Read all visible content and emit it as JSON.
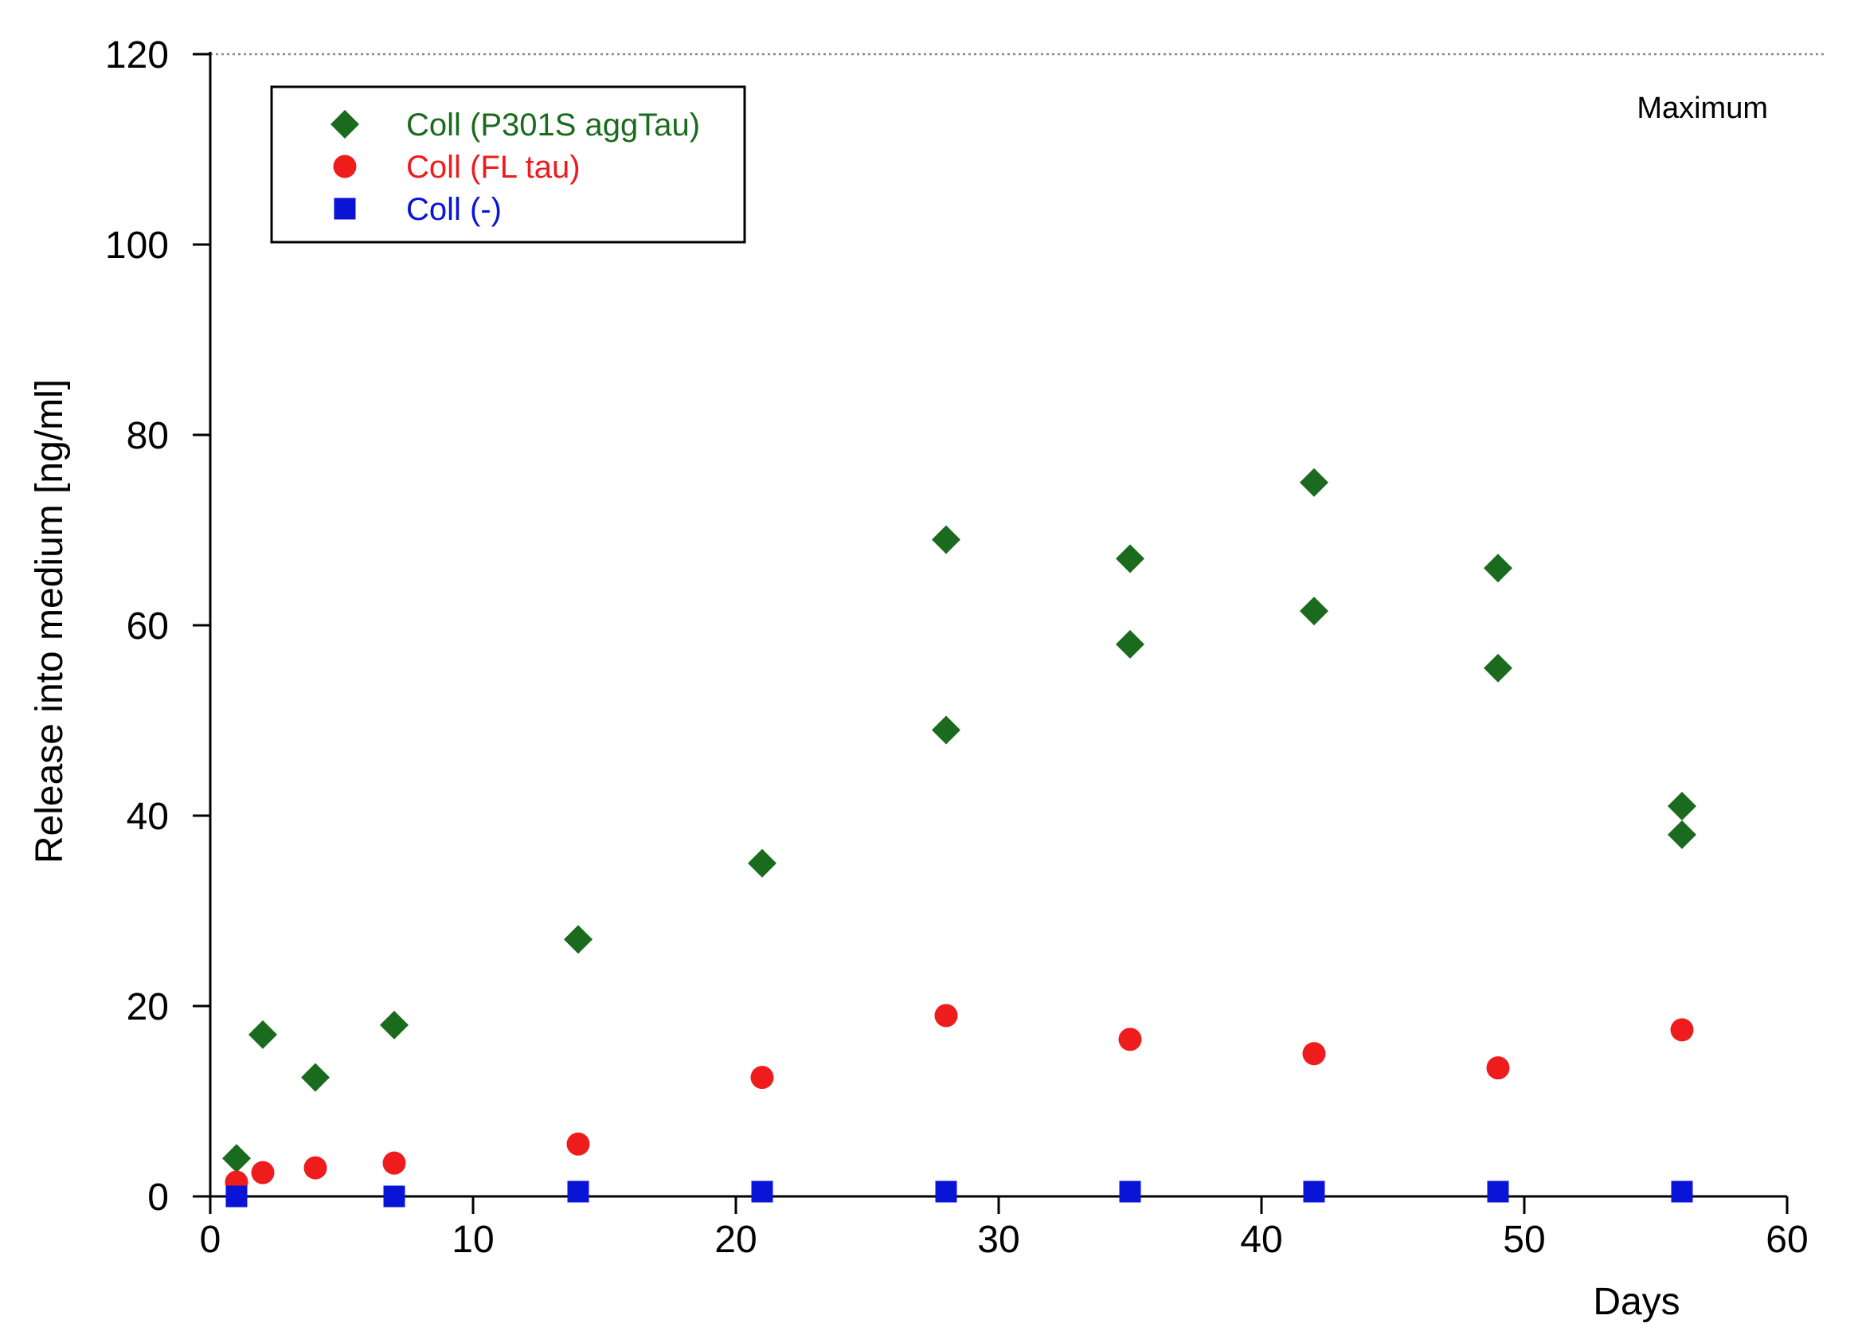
{
  "chart_data": {
    "type": "scatter",
    "title": "",
    "xlabel": "Days",
    "ylabel": "Release into medium [ng/ml]",
    "xlim": [
      0,
      60
    ],
    "ylim": [
      0,
      120
    ],
    "xticks": [
      "0",
      "10",
      "20",
      "30",
      "40",
      "50",
      "60"
    ],
    "yticks": [
      "0",
      "20",
      "40",
      "60",
      "80",
      "100",
      "120"
    ],
    "grid": false,
    "legend_position": "top-left",
    "annotations": [
      {
        "text": "Maximum",
        "y": 120,
        "line_style": "dotted"
      }
    ],
    "series": [
      {
        "name": "Coll (P301S aggTau)",
        "marker": "diamond",
        "color": "#1a6b1e",
        "points": [
          [
            1,
            4
          ],
          [
            2,
            17
          ],
          [
            4,
            12.5
          ],
          [
            7,
            18
          ],
          [
            14,
            27
          ],
          [
            21,
            35
          ],
          [
            28,
            69
          ],
          [
            28,
            49
          ],
          [
            35,
            67
          ],
          [
            35,
            58
          ],
          [
            42,
            75
          ],
          [
            42,
            61.5
          ],
          [
            49,
            66
          ],
          [
            49,
            55.5
          ],
          [
            56,
            41
          ],
          [
            56,
            38
          ]
        ]
      },
      {
        "name": "Coll (FL tau)",
        "marker": "circle",
        "color": "#ee1c1c",
        "points": [
          [
            1,
            1.5
          ],
          [
            2,
            2.5
          ],
          [
            4,
            3
          ],
          [
            7,
            3.5
          ],
          [
            14,
            5.5
          ],
          [
            21,
            12.5
          ],
          [
            28,
            19
          ],
          [
            35,
            16.5
          ],
          [
            42,
            15
          ],
          [
            49,
            13.5
          ],
          [
            56,
            17.5
          ]
        ]
      },
      {
        "name": "Coll (-)",
        "marker": "square",
        "color": "#0a14d6",
        "points": [
          [
            1,
            0
          ],
          [
            7,
            0
          ],
          [
            14,
            0.5
          ],
          [
            21,
            0.5
          ],
          [
            28,
            0.5
          ],
          [
            35,
            0.5
          ],
          [
            42,
            0.5
          ],
          [
            49,
            0.5
          ],
          [
            56,
            0.5
          ]
        ]
      }
    ]
  }
}
